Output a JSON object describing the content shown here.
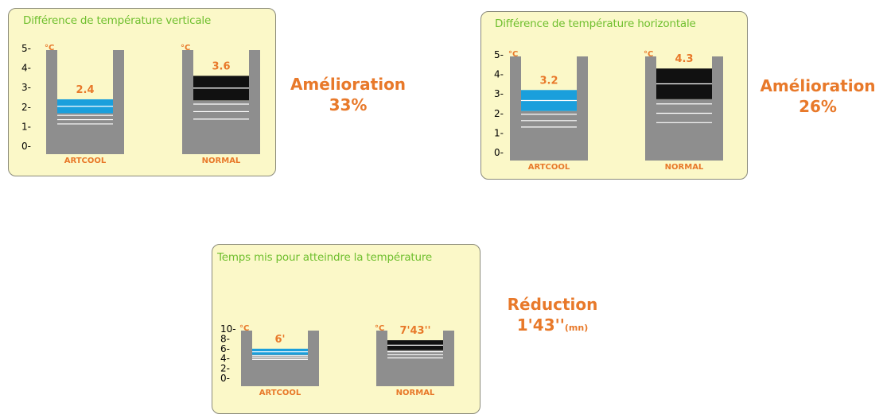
{
  "chart_data": [
    {
      "type": "bar",
      "title": "Différence de température verticale",
      "unit": "°C",
      "yticks": [
        "0-",
        "1-",
        "2-",
        "3-",
        "4-",
        "5-"
      ],
      "ylim": [
        0,
        5
      ],
      "categories": [
        "ARTCOOL",
        "NORMAL"
      ],
      "values": [
        2.4,
        3.6
      ],
      "value_labels": [
        "2.4",
        "3.6"
      ],
      "bar_colors": [
        "#1a9fdc",
        "#111111"
      ],
      "result": {
        "line1": "Amélioration",
        "line2": "33%"
      }
    },
    {
      "type": "bar",
      "title": "Différence de température horizontale",
      "unit": "°C",
      "yticks": [
        "0-",
        "1-",
        "2-",
        "3-",
        "4-",
        "5-"
      ],
      "ylim": [
        0,
        5
      ],
      "categories": [
        "ARTCOOL",
        "NORMAL"
      ],
      "values": [
        3.2,
        4.3
      ],
      "value_labels": [
        "3.2",
        "4.3"
      ],
      "bar_colors": [
        "#1a9fdc",
        "#111111"
      ],
      "result": {
        "line1": "Amélioration",
        "line2": "26%"
      }
    },
    {
      "type": "bar",
      "title": "Temps mis pour atteindre la température",
      "unit": "°C",
      "yticks": [
        "0-",
        "2-",
        "4-",
        "6-",
        "8-",
        "10-"
      ],
      "ylim": [
        0,
        10
      ],
      "categories": [
        "ARTCOOL",
        "NORMAL"
      ],
      "values": [
        6,
        7.72
      ],
      "value_labels": [
        "6'",
        "7'43''"
      ],
      "bar_colors": [
        "#1a9fdc",
        "#111111"
      ],
      "result": {
        "line1": "Réduction",
        "line2": "1'43''",
        "line2_unit": "(mn)"
      }
    }
  ]
}
